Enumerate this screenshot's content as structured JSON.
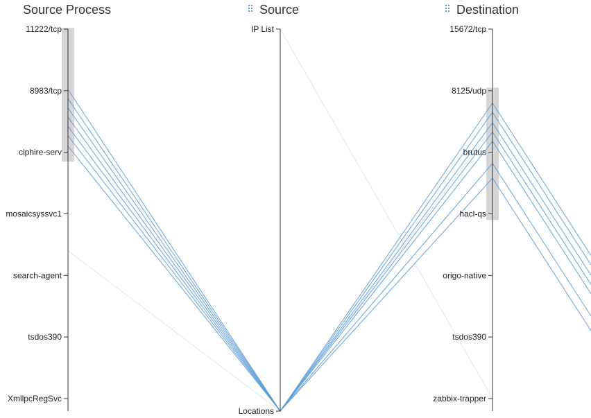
{
  "chart_data": {
    "type": "parallel-coordinates",
    "axes": [
      {
        "title": "Source Process",
        "draggable": false,
        "ticks": [
          "11222/tcp",
          "8983/tcp",
          "ciphire-serv",
          "mosaicsyssvc1",
          "search-agent",
          "tsdos390",
          "XmllpcRegSvc"
        ]
      },
      {
        "title": "Source",
        "draggable": true,
        "ticks": [
          "IP List",
          "Locations"
        ]
      },
      {
        "title": "Destination",
        "draggable": true,
        "ticks": [
          "15672/tcp",
          "8125/udp",
          "brutus",
          "hacl-qs",
          "origo-native",
          "tsdos390",
          "zabbix-trapper"
        ]
      }
    ],
    "brushes": [
      {
        "axis": "Source Process",
        "from": -0.02,
        "to": 2.15
      },
      {
        "axis": "Destination",
        "from": 0.95,
        "to": 3.1
      }
    ],
    "selected_lines": [
      {
        "source_process": 0.98,
        "source": "Locations",
        "destination": 1.2
      },
      {
        "source_process": 1.13,
        "source": "Locations",
        "destination": 1.35
      },
      {
        "source_process": 1.28,
        "source": "Locations",
        "destination": 1.52
      },
      {
        "source_process": 1.43,
        "source": "Locations",
        "destination": 1.67
      },
      {
        "source_process": 1.58,
        "source": "Locations",
        "destination": 1.82
      },
      {
        "source_process": 1.73,
        "source": "Locations",
        "destination": 2.18
      },
      {
        "source_process": 1.9,
        "source": "Locations",
        "destination": 2.42
      }
    ],
    "colors": {
      "line": "#5b9bd5",
      "faded_line": "#dbe7f3",
      "axis": "#333333",
      "brush": "#d3d3d3",
      "handle": "#5b9bd5"
    }
  }
}
